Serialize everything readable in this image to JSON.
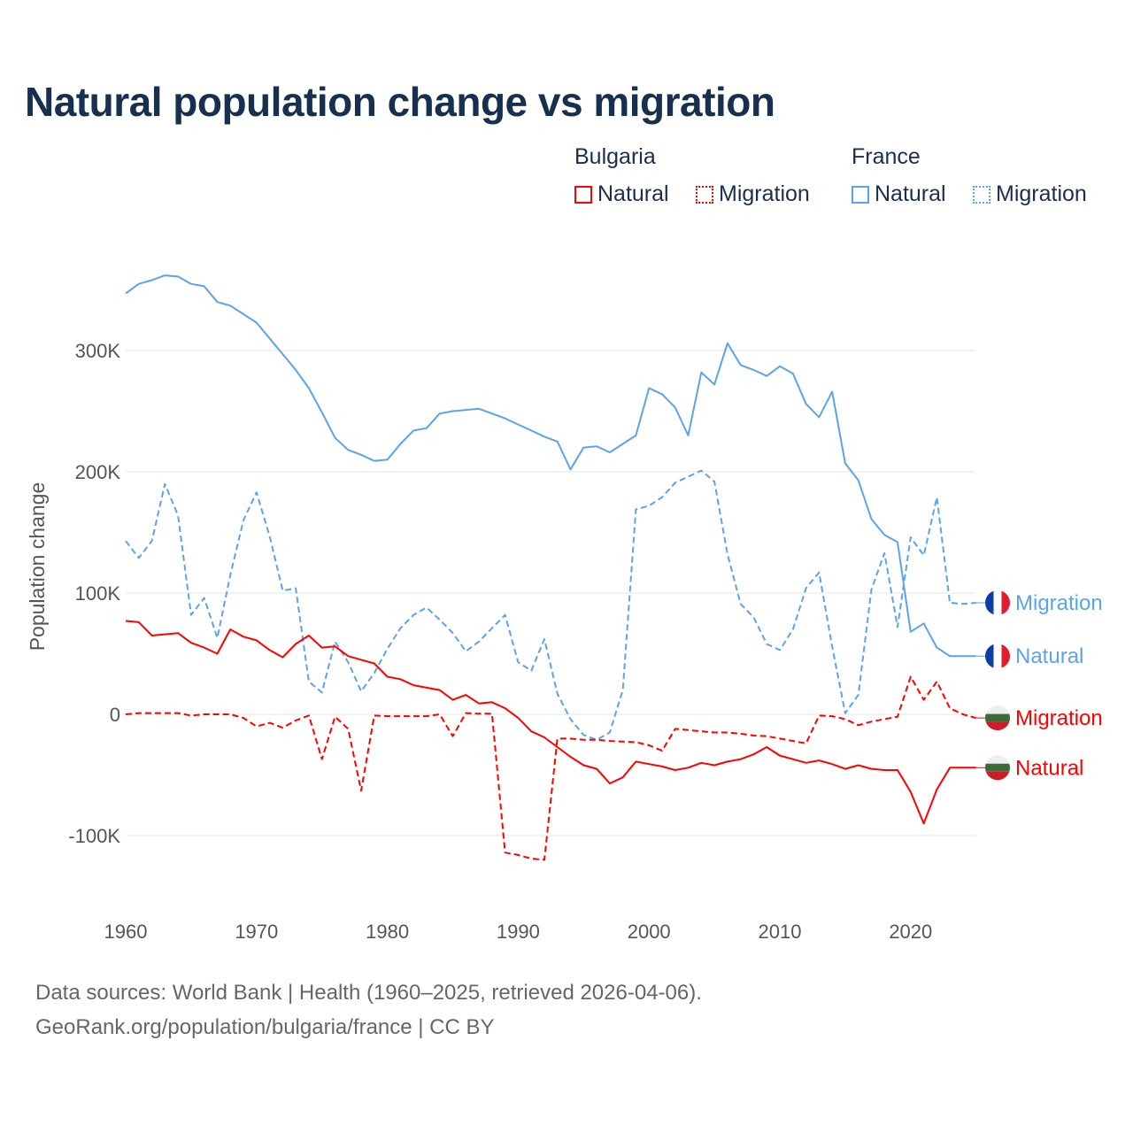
{
  "title": "Natural population change vs migration",
  "legend": {
    "groups": [
      {
        "name": "Bulgaria",
        "items": [
          {
            "label": "Natural",
            "style": "solid",
            "color": "#ff0000"
          },
          {
            "label": "Migration",
            "style": "dotted",
            "color": "#ff0000"
          }
        ]
      },
      {
        "name": "France",
        "items": [
          {
            "label": "Natural",
            "style": "solid",
            "color": "#5ba3ea"
          },
          {
            "label": "Migration",
            "style": "dotted",
            "color": "#5ba3ea"
          }
        ]
      }
    ]
  },
  "footer": {
    "line1": "Data sources: World Bank | Health (1960–2025, retrieved 2026-04-06).",
    "line2": "GeoRank.org/population/bulgaria/france | CC BY"
  },
  "chart_data": {
    "type": "line",
    "title": "Natural population change vs migration",
    "xlabel": "",
    "ylabel": "Population change",
    "xlim": [
      1960,
      2025
    ],
    "ylim": [
      -150000,
      370000
    ],
    "xticks": [
      1960,
      1970,
      1980,
      1990,
      2000,
      2010,
      2020
    ],
    "yticks": [
      {
        "v": 300000,
        "label": "300K"
      },
      {
        "v": 200000,
        "label": "200K"
      },
      {
        "v": 100000,
        "label": "100K"
      },
      {
        "v": 0,
        "label": "0"
      },
      {
        "v": -100000,
        "label": "-100K"
      }
    ],
    "grid": true,
    "legend_position": "top-right",
    "x_start": 1960,
    "series": [
      {
        "name": "France Natural",
        "country": "France",
        "end_label": "Natural",
        "color": "#5ba3ea",
        "dash": false,
        "values": [
          347,
          355,
          358,
          362,
          361,
          355,
          353,
          340,
          337,
          330,
          323,
          310,
          297,
          284,
          269,
          249,
          228,
          218,
          214,
          209,
          210,
          223,
          234,
          236,
          248,
          250,
          251,
          252,
          248,
          244,
          239,
          234,
          229,
          225,
          202,
          220,
          221,
          216,
          223,
          230,
          269,
          264,
          253,
          230,
          282,
          272,
          306,
          288,
          284,
          279,
          287,
          281,
          256,
          245,
          266,
          207,
          193,
          161,
          148,
          142,
          68,
          75,
          55,
          48,
          48,
          48
        ]
      },
      {
        "name": "France Migration",
        "country": "France",
        "end_label": "Migration",
        "color": "#5ba3ea",
        "dash": true,
        "values": [
          143,
          129,
          143,
          190,
          164,
          82,
          96,
          63,
          115,
          160,
          183,
          147,
          102,
          104,
          27,
          18,
          60,
          43,
          19,
          34,
          54,
          71,
          82,
          88,
          78,
          67,
          52,
          60,
          71,
          82,
          43,
          36,
          62,
          17,
          -4,
          -17,
          -21,
          -15,
          20,
          169,
          172,
          179,
          191,
          196,
          201,
          192,
          132,
          91,
          80,
          58,
          53,
          70,
          104,
          117,
          56,
          1,
          16,
          103,
          133,
          72,
          146,
          131,
          179,
          92,
          91,
          92
        ]
      },
      {
        "name": "Bulgaria Natural",
        "country": "Bulgaria",
        "end_label": "Natural",
        "color": "#ff0000",
        "dash": false,
        "values": [
          77,
          76,
          65,
          66,
          67,
          59,
          55,
          50,
          70,
          64,
          61,
          53,
          47,
          58,
          65,
          55,
          56,
          48,
          45,
          42,
          31,
          29,
          24,
          22,
          20,
          12,
          16,
          9,
          10,
          5,
          -3,
          -14,
          -19,
          -27,
          -35,
          -42,
          -45,
          -57,
          -52,
          -39,
          -41,
          -43,
          -46,
          -44,
          -40,
          -42,
          -39,
          -37,
          -33,
          -27,
          -34,
          -37,
          -40,
          -38,
          -41,
          -45,
          -42,
          -45,
          -46,
          -46,
          -64,
          -90,
          -62,
          -44,
          -44,
          -44
        ]
      },
      {
        "name": "Bulgaria Migration",
        "country": "Bulgaria",
        "end_label": "Migration",
        "color": "#ff0000",
        "dash": true,
        "values": [
          0,
          1,
          1,
          1,
          1,
          -1,
          0,
          0,
          0,
          -3,
          -10,
          -7,
          -11,
          -5,
          -1,
          -37,
          -2,
          -12,
          -63,
          -1,
          -1.5,
          -1.5,
          -1.5,
          -1.5,
          0,
          -18,
          1,
          0.5,
          0.5,
          -114,
          -116,
          -119,
          -120,
          -20,
          -20,
          -21,
          -21,
          -22,
          -22.5,
          -23,
          -25.5,
          -30,
          -12,
          -13,
          -14,
          -15,
          -15,
          -16,
          -17.5,
          -18,
          -20,
          -22,
          -24,
          -1,
          -1.5,
          -4,
          -9,
          -6,
          -4,
          -2,
          31,
          12,
          27,
          5,
          0,
          -3
        ]
      }
    ],
    "value_unit": "thousands"
  }
}
